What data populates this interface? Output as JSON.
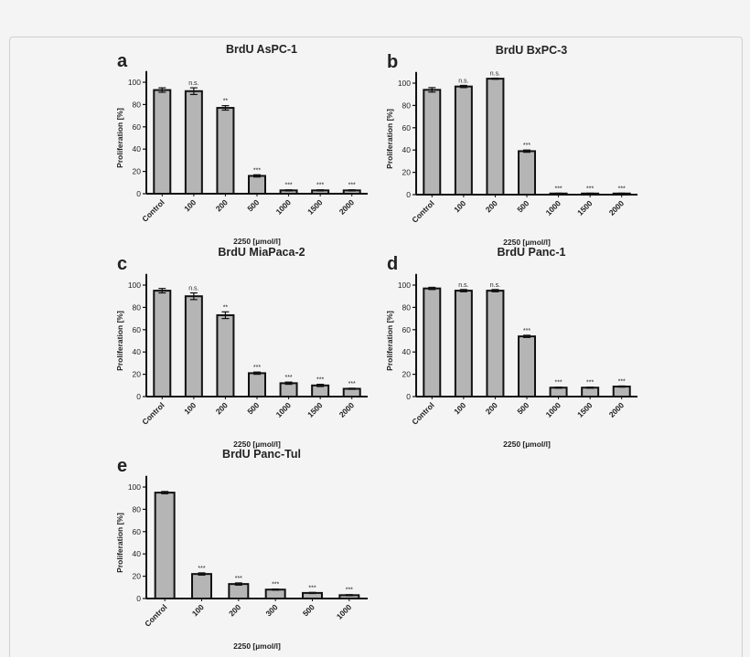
{
  "chart_data": [
    {
      "type": "bar",
      "panel": "a",
      "title": "BrdU AsPC-1",
      "xlabel": "2250 [µmol/l]",
      "ylabel": "Proliferation [%]",
      "ylim": [
        0,
        110
      ],
      "yticks": [
        0,
        20,
        40,
        60,
        80,
        100
      ],
      "categories": [
        "Control",
        "100",
        "200",
        "500",
        "1000",
        "1500",
        "2000"
      ],
      "values": [
        93,
        92,
        77,
        16,
        3,
        3,
        3
      ],
      "errors": [
        2,
        3,
        2,
        1,
        0.5,
        0.5,
        0.5
      ],
      "significance": [
        "",
        "n.s.",
        "**",
        "***",
        "***",
        "***",
        "***"
      ]
    },
    {
      "type": "bar",
      "panel": "b",
      "title": "BrdU BxPC-3",
      "xlabel": "2250 [µmol/l]",
      "ylabel": "Proliferation [%]",
      "ylim": [
        0,
        110
      ],
      "yticks": [
        0,
        20,
        40,
        60,
        80,
        100
      ],
      "categories": [
        "Control",
        "100",
        "200",
        "500",
        "1000",
        "1500",
        "2000"
      ],
      "values": [
        94,
        97,
        104,
        39,
        1,
        1,
        1
      ],
      "errors": [
        2,
        1,
        0.5,
        1,
        0.3,
        0.3,
        0.3
      ],
      "significance": [
        "",
        "n.s.",
        "n.s.",
        "***",
        "***",
        "***",
        "***"
      ]
    },
    {
      "type": "bar",
      "panel": "c",
      "title": "BrdU MiaPaca-2",
      "xlabel": "2250 [µmol/l]",
      "ylabel": "Proliferation [%]",
      "ylim": [
        0,
        110
      ],
      "yticks": [
        0,
        20,
        40,
        60,
        80,
        100
      ],
      "categories": [
        "Control",
        "100",
        "200",
        "500",
        "1000",
        "1500",
        "2000"
      ],
      "values": [
        95,
        90,
        73,
        21,
        12,
        10,
        7
      ],
      "errors": [
        2,
        3,
        3,
        1,
        1,
        1,
        0.5
      ],
      "significance": [
        "",
        "n.s.",
        "**",
        "***",
        "***",
        "***",
        "***"
      ]
    },
    {
      "type": "bar",
      "panel": "d",
      "title": "BrdU Panc-1",
      "xlabel": "2250 [µmol/l]",
      "ylabel": "Proliferation [%]",
      "ylim": [
        0,
        110
      ],
      "yticks": [
        0,
        20,
        40,
        60,
        80,
        100
      ],
      "categories": [
        "Control",
        "100",
        "200",
        "500",
        "1000",
        "1500",
        "2000"
      ],
      "values": [
        97,
        95,
        95,
        54,
        8,
        8,
        9
      ],
      "errors": [
        1,
        1,
        1,
        1,
        0.5,
        0.5,
        0.5
      ],
      "significance": [
        "",
        "n.s.",
        "n.s.",
        "***",
        "***",
        "***",
        "***"
      ]
    },
    {
      "type": "bar",
      "panel": "e",
      "title": "BrdU Panc-Tul",
      "xlabel": "2250 [µmol/l]",
      "ylabel": "Proliferation [%]",
      "ylim": [
        0,
        110
      ],
      "yticks": [
        0,
        20,
        40,
        60,
        80,
        100
      ],
      "categories": [
        "Control",
        "100",
        "200",
        "300",
        "500",
        "1000"
      ],
      "values": [
        95,
        22,
        13,
        8,
        5,
        3
      ],
      "errors": [
        1,
        1,
        1,
        0.5,
        0.5,
        0.5
      ],
      "significance": [
        "",
        "***",
        "***",
        "***",
        "***",
        "***"
      ]
    }
  ],
  "colors": {
    "bar_fill": "#b5b5b5",
    "bar_stroke": "#111111",
    "background": "#f4f4f4"
  }
}
